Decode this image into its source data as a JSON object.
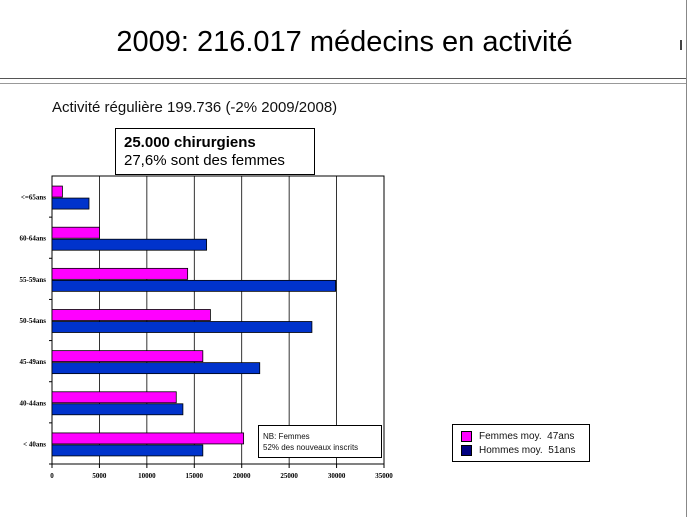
{
  "slide": {
    "title": "2009: 216.017 médecins en activité",
    "subtitle": "Activité régulière 199.736 (-2% 2009/2008)"
  },
  "callout": {
    "line1": "25.000 chirurgiens",
    "line2": "27,6% sont des femmes"
  },
  "note": {
    "line1": "NB: Femmes",
    "line2": "52% des nouveaux inscrits"
  },
  "chart_data": {
    "type": "bar",
    "orientation": "horizontal",
    "categories": [
      "< 40ans",
      "40-44ans",
      "45-49ans",
      "50-54ans",
      "55-59ans",
      "60-64ans",
      "<=65ans"
    ],
    "series": [
      {
        "name": "Femmes moy.  47ans",
        "color": "#ff00ff",
        "values": [
          20200,
          13100,
          15900,
          16700,
          14300,
          5000,
          1100
        ]
      },
      {
        "name": "Hommes moy.  51ans",
        "color": "#0033cc",
        "values": [
          15900,
          13800,
          21900,
          27400,
          29900,
          16300,
          3900
        ]
      }
    ],
    "xlim": [
      0,
      35000
    ],
    "xticks": [
      "0",
      "5000",
      "10000",
      "15000",
      "20000",
      "25000",
      "30000",
      "35000"
    ],
    "grid": true,
    "legend_position": "bottom-right"
  }
}
